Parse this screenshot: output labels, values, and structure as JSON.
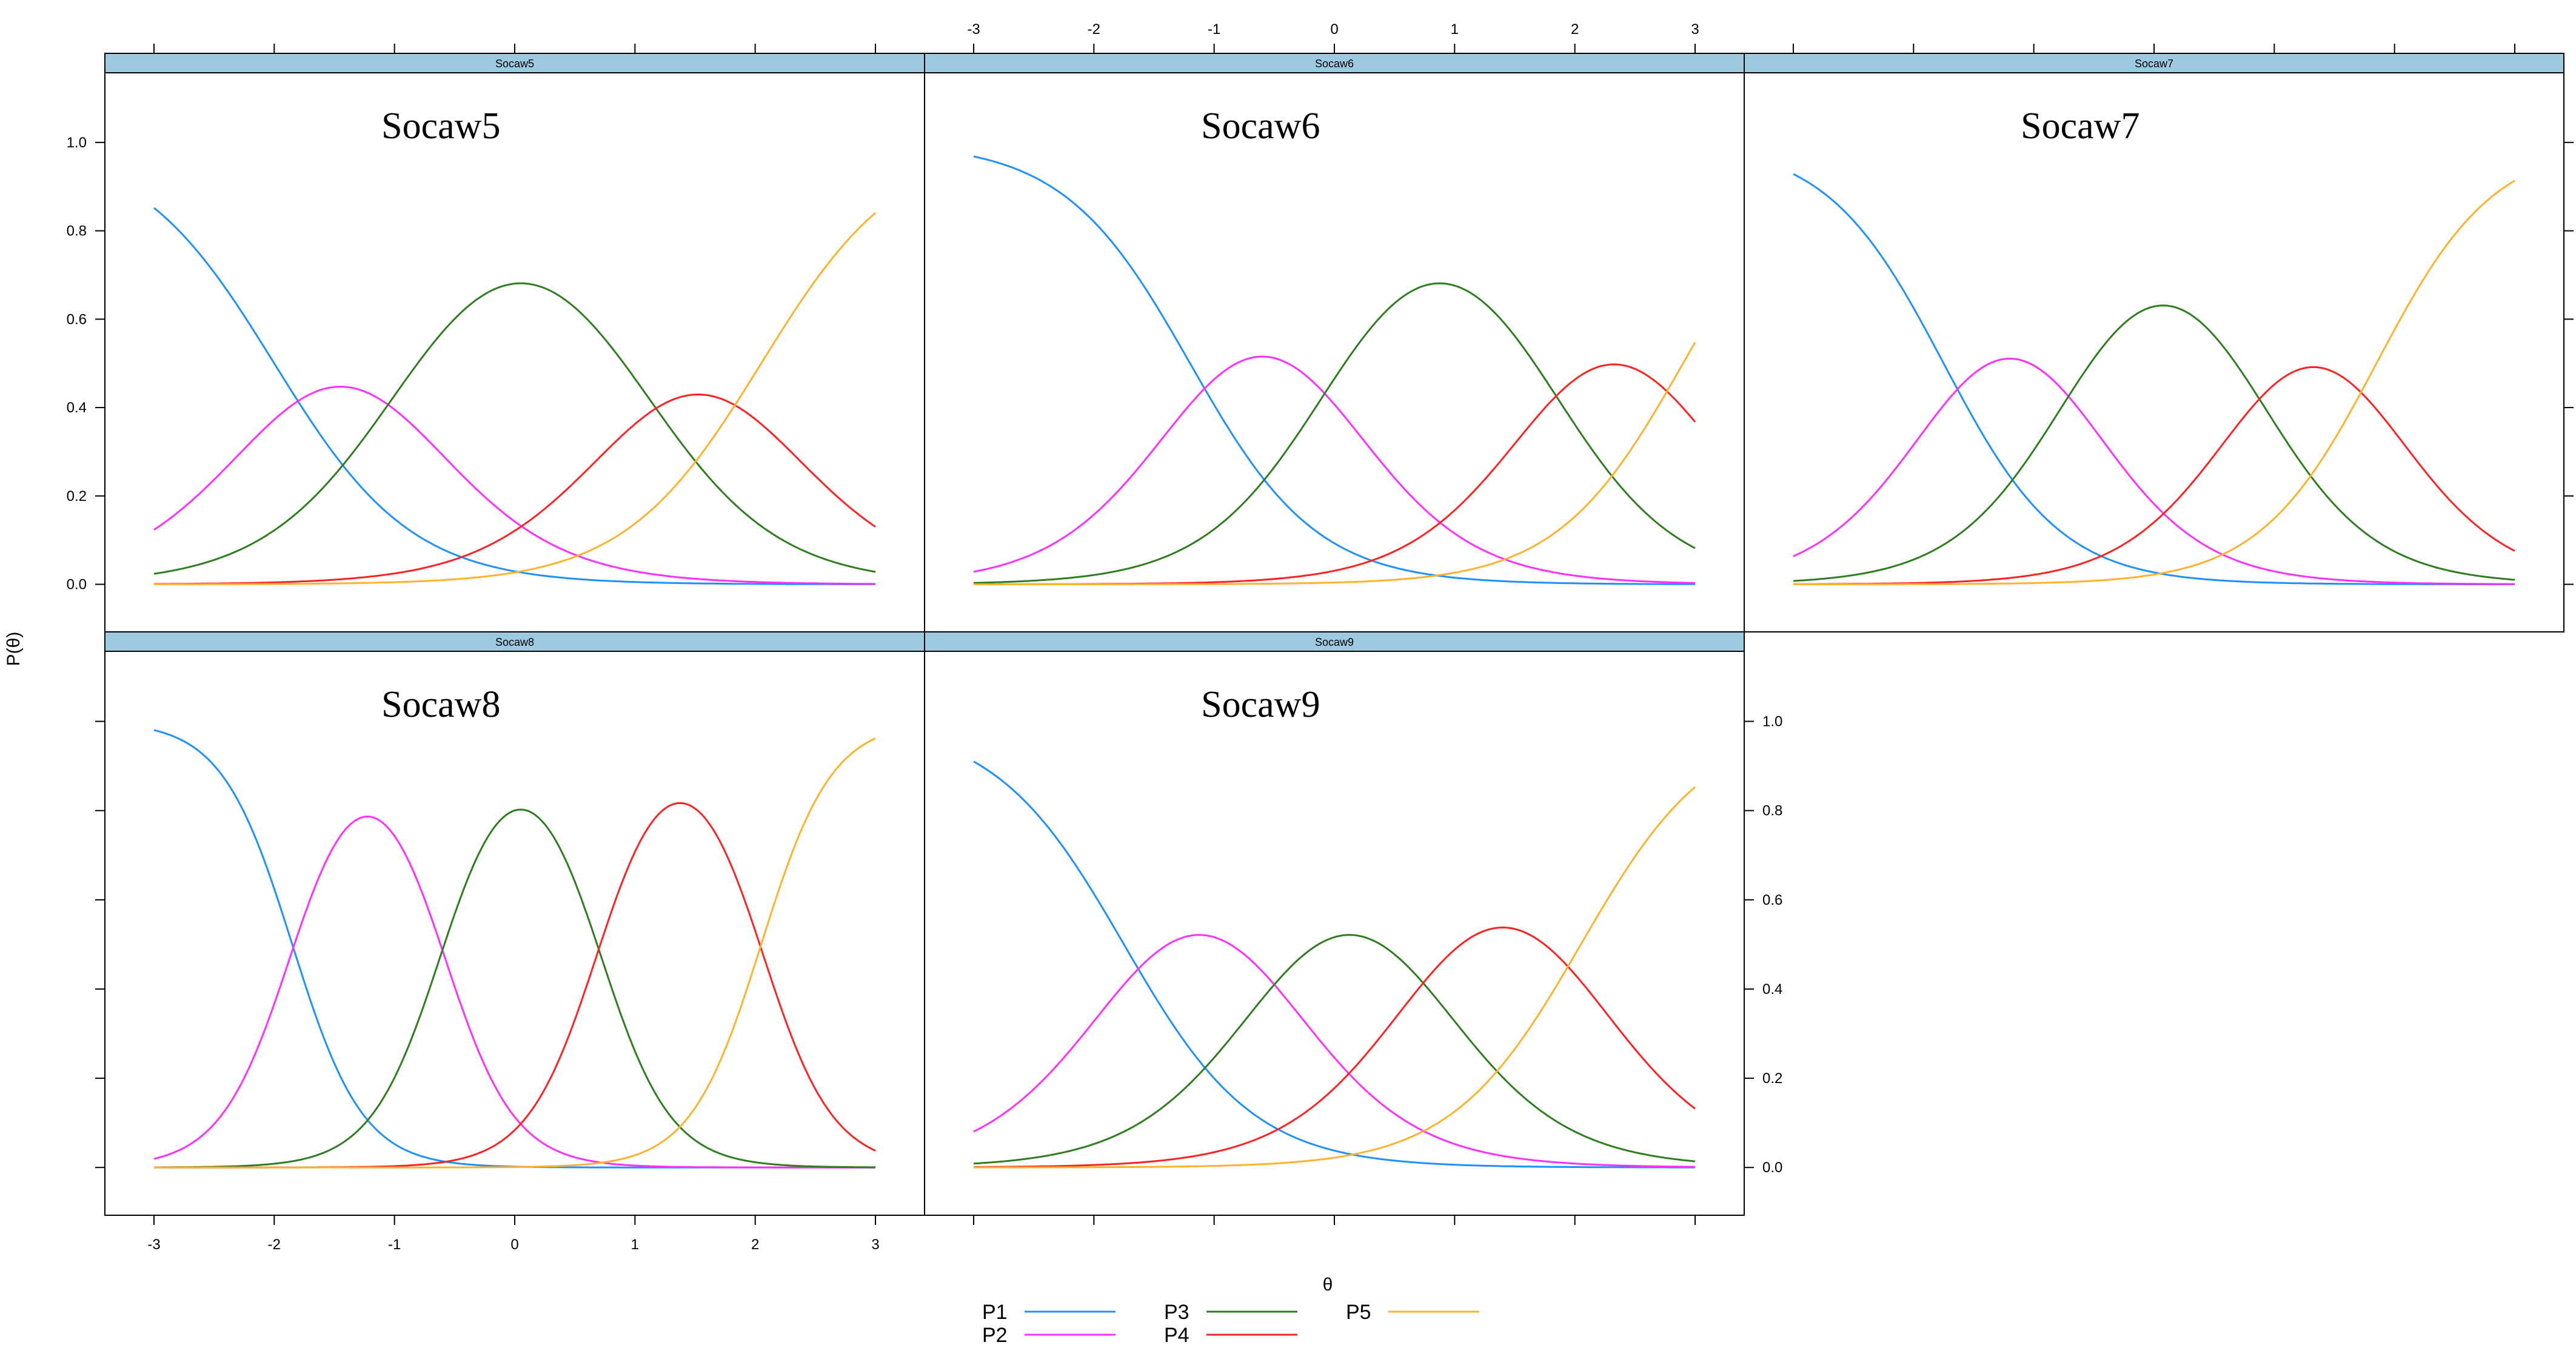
{
  "chart_data": {
    "type": "line",
    "ylabel": "P(θ)",
    "xlabel": "θ",
    "xlim": [
      -3,
      3
    ],
    "ylim": [
      -0.05,
      1.1
    ],
    "x_ticks": [
      -3,
      -2,
      -1,
      0,
      1,
      2,
      3
    ],
    "y_ticks": [
      0.0,
      0.2,
      0.4,
      0.6,
      0.8,
      1.0
    ],
    "y_tick_labels": [
      "0.0",
      "0.2",
      "0.4",
      "0.6",
      "0.8",
      "1.0"
    ],
    "grid": false,
    "legend": {
      "placement": "bottom",
      "entries": [
        {
          "label": "P1",
          "color": "#1e90ff"
        },
        {
          "label": "P2",
          "color": "#ff30ff"
        },
        {
          "label": "P3",
          "color": "#2e7d1f"
        },
        {
          "label": "P4",
          "color": "#ff2222"
        },
        {
          "label": "P5",
          "color": "#ffb22e"
        }
      ]
    },
    "panels": [
      {
        "strip": "Socaw5",
        "title": "Socaw5",
        "row": 0,
        "col": 0,
        "a": 1.75,
        "b": [
          -2.0,
          -0.9,
          1.0,
          2.05
        ]
      },
      {
        "strip": "Socaw6",
        "title": "Socaw6",
        "row": 0,
        "col": 1,
        "a": 1.9,
        "b": [
          -1.2,
          0.0,
          1.75,
          2.9
        ]
      },
      {
        "strip": "Socaw7",
        "title": "Socaw7",
        "row": 0,
        "col": 2,
        "a": 2.05,
        "b": [
          -1.75,
          -0.65,
          0.8,
          1.85
        ]
      },
      {
        "strip": "Socaw8",
        "title": "Socaw8",
        "row": 1,
        "col": 0,
        "a": 3.4,
        "b": [
          -1.85,
          -0.6,
          0.7,
          2.05
        ]
      },
      {
        "strip": "Socaw9",
        "title": "Socaw9",
        "row": 1,
        "col": 1,
        "a": 1.85,
        "b": [
          -1.75,
          -0.5,
          0.75,
          2.05
        ]
      }
    ]
  }
}
